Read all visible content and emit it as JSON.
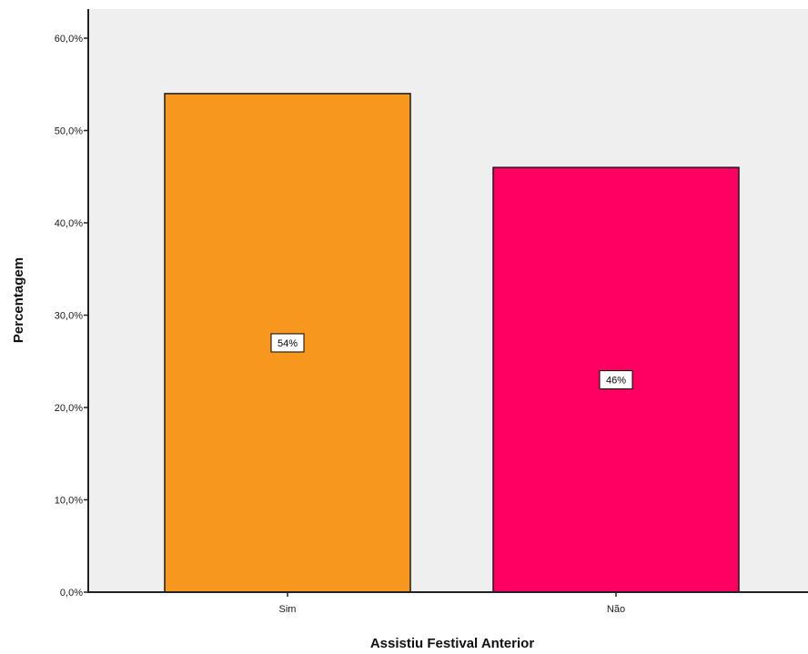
{
  "chart_data": {
    "type": "bar",
    "title": "",
    "xlabel": "Assistiu Festival Anterior",
    "ylabel": "Percentagem",
    "categories": [
      "Sim",
      "Não"
    ],
    "values": [
      54,
      46
    ],
    "data_labels": [
      "54%",
      "46%"
    ],
    "bar_colors": [
      "#f7971e",
      "#ff0062"
    ],
    "plot_background": "#efefef",
    "ylim": [
      0,
      60
    ],
    "yticks": [
      0,
      10,
      20,
      30,
      40,
      50,
      60
    ],
    "ytick_labels": [
      "0,0%",
      "10,0%",
      "20,0%",
      "30,0%",
      "40,0%",
      "50,0%",
      "60,0%"
    ],
    "grid": false,
    "legend": "none"
  }
}
